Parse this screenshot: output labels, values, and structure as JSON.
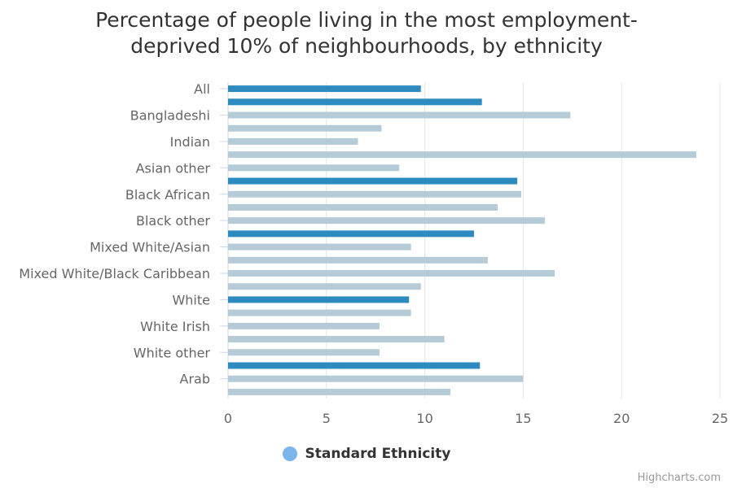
{
  "colors": {
    "highlight": "#2e8bc0",
    "normal": "#b5cbd8",
    "legend": "#7cb5ec",
    "grid": "#e6e6e6",
    "label": "#666666",
    "title": "#333333"
  },
  "legend": {
    "label": "Standard Ethnicity"
  },
  "credits": "Highcharts.com",
  "chart_data": {
    "type": "bar",
    "orientation": "horizontal",
    "title_lines": [
      "Percentage of people living in the most employment-",
      "deprived 10% of neighbourhoods, by ethnicity"
    ],
    "categories": [
      "All",
      "",
      "Bangladeshi",
      "",
      "Indian",
      "",
      "Asian other",
      "",
      "Black African",
      "",
      "Black other",
      "",
      "Mixed White/Asian",
      "",
      "Mixed White/Black Caribbean",
      "",
      "White",
      "",
      "White Irish",
      "",
      "White other",
      "",
      "Arab",
      ""
    ],
    "values": [
      9.8,
      12.9,
      17.4,
      7.8,
      6.6,
      23.8,
      8.7,
      14.7,
      14.9,
      13.7,
      16.1,
      12.5,
      9.3,
      13.2,
      16.6,
      9.8,
      9.2,
      9.3,
      7.7,
      11.0,
      7.7,
      12.8,
      15.0,
      11.3
    ],
    "highlighted": [
      true,
      true,
      false,
      false,
      false,
      false,
      false,
      true,
      false,
      false,
      false,
      true,
      false,
      false,
      false,
      false,
      true,
      false,
      false,
      false,
      false,
      true,
      false,
      false
    ],
    "series": [
      {
        "name": "Standard Ethnicity"
      }
    ],
    "xlim": [
      0,
      25
    ],
    "xticks": [
      0,
      5,
      10,
      15,
      20,
      25
    ],
    "grid": true,
    "legend_position": "bottom-center"
  }
}
